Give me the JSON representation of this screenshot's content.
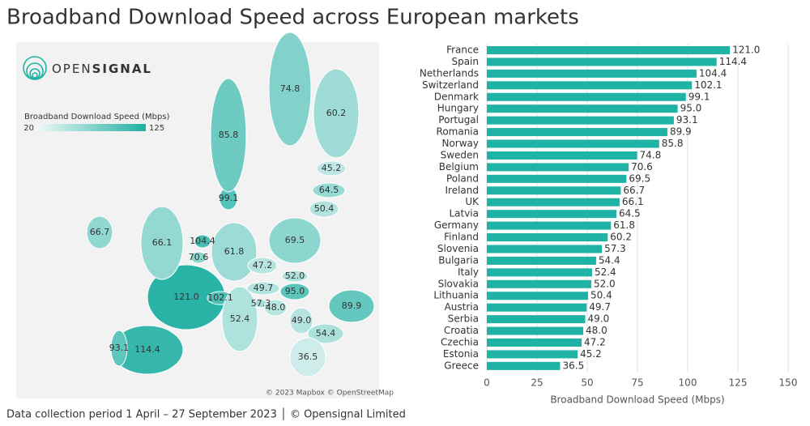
{
  "chart_data": {
    "type": "bar",
    "orientation": "horizontal",
    "title": "Broadband Download Speed across European markets",
    "logo": {
      "first": "OPEN",
      "second": "SIGNAL"
    },
    "colorbar": {
      "label": "Broadband Download Speed (Mbps)",
      "range": [
        20,
        125
      ],
      "colors": [
        "#eef8f7",
        "#20b0a3"
      ]
    },
    "map_credit": "© 2023 Mapbox © OpenStreetMap",
    "footer": "Data collection period 1 April – 27 September 2023  │  © Opensignal Limited",
    "categories": [
      "France",
      "Spain",
      "Netherlands",
      "Switzerland",
      "Denmark",
      "Hungary",
      "Portugal",
      "Romania",
      "Norway",
      "Sweden",
      "Belgium",
      "Poland",
      "Ireland",
      "UK",
      "Latvia",
      "Germany",
      "Finland",
      "Slovenia",
      "Bulgaria",
      "Italy",
      "Slovakia",
      "Lithuania",
      "Austria",
      "Serbia",
      "Croatia",
      "Czechia",
      "Estonia",
      "Greece"
    ],
    "values": [
      121.0,
      114.4,
      104.4,
      102.1,
      99.1,
      95.0,
      93.1,
      89.9,
      85.8,
      74.8,
      70.6,
      69.5,
      66.7,
      66.1,
      64.5,
      61.8,
      60.2,
      57.3,
      54.4,
      52.4,
      52.0,
      50.4,
      49.7,
      49.0,
      48.0,
      47.2,
      45.2,
      36.5
    ],
    "value_labels": [
      "121.0",
      "114.4",
      "104.4",
      "102.1",
      "99.1",
      "95.0",
      "93.1",
      "89.9",
      "85.8",
      "74.8",
      "70.6",
      "69.5",
      "66.7",
      "66.1",
      "64.5",
      "61.8",
      "60.2",
      "57.3",
      "54.4",
      "52.4",
      "52.0",
      "50.4",
      "49.7",
      "49.0",
      "48.0",
      "47.2",
      "45.2",
      "36.5"
    ],
    "color": "#1fb3a6",
    "xlabel": "Broadband Download Speed (Mbps)",
    "xlim": [
      0,
      150
    ],
    "xticks": [
      0,
      25,
      50,
      75,
      100,
      125,
      150
    ],
    "grid": true
  }
}
